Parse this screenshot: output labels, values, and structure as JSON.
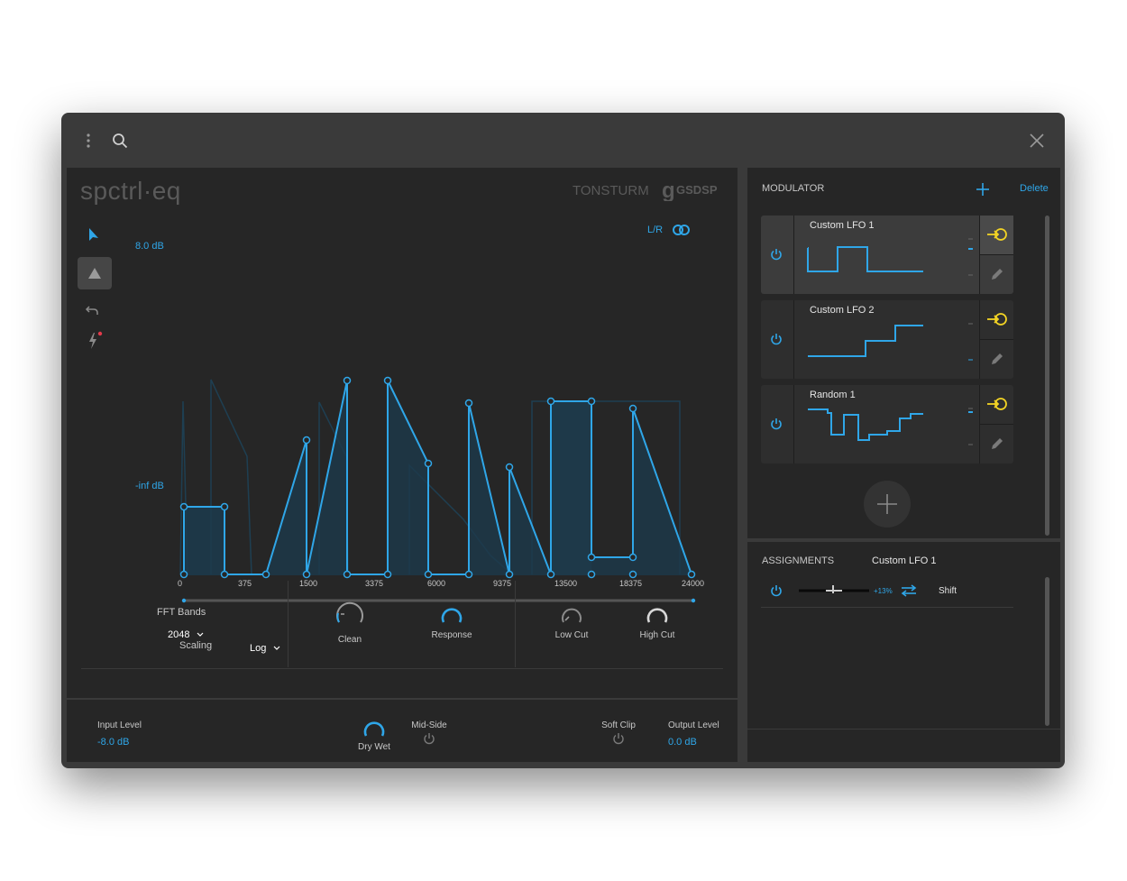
{
  "plugin": {
    "logo": "spctrl·eq",
    "brand": "TONSTURM",
    "brand2": "GSDSP"
  },
  "channel_mode": "L/R",
  "eq": {
    "max_label": "8.0 dB",
    "min_label": "-inf dB",
    "x_ticks": [
      "0",
      "375",
      "1500",
      "3375",
      "6000",
      "9375",
      "13500",
      "18375",
      "24000"
    ],
    "scaling_label": "Scaling",
    "scaling_value": "Log"
  },
  "controls": {
    "fft_label": "FFT Bands",
    "fft_value": "2048",
    "knobs": [
      "Clean",
      "Response",
      "Low Cut",
      "High Cut"
    ]
  },
  "bottom": {
    "input_label": "Input Level",
    "input_value": "-8.0 dB",
    "dry_wet": "Dry Wet",
    "mid_side": "Mid-Side",
    "soft_clip": "Soft Clip",
    "output_label": "Output Level",
    "output_value": "0.0 dB"
  },
  "modulator": {
    "header": "MODULATOR",
    "delete": "Delete",
    "items": [
      {
        "name": "Custom LFO 1"
      },
      {
        "name": "Custom LFO 2"
      },
      {
        "name": "Random 1"
      }
    ]
  },
  "assignments": {
    "header": "ASSIGNMENTS",
    "selected": "Custom LFO 1",
    "row": {
      "amount": "+13%",
      "target": "Shift"
    }
  },
  "colors": {
    "accent": "#2fa6e8",
    "link": "#f2d324"
  }
}
